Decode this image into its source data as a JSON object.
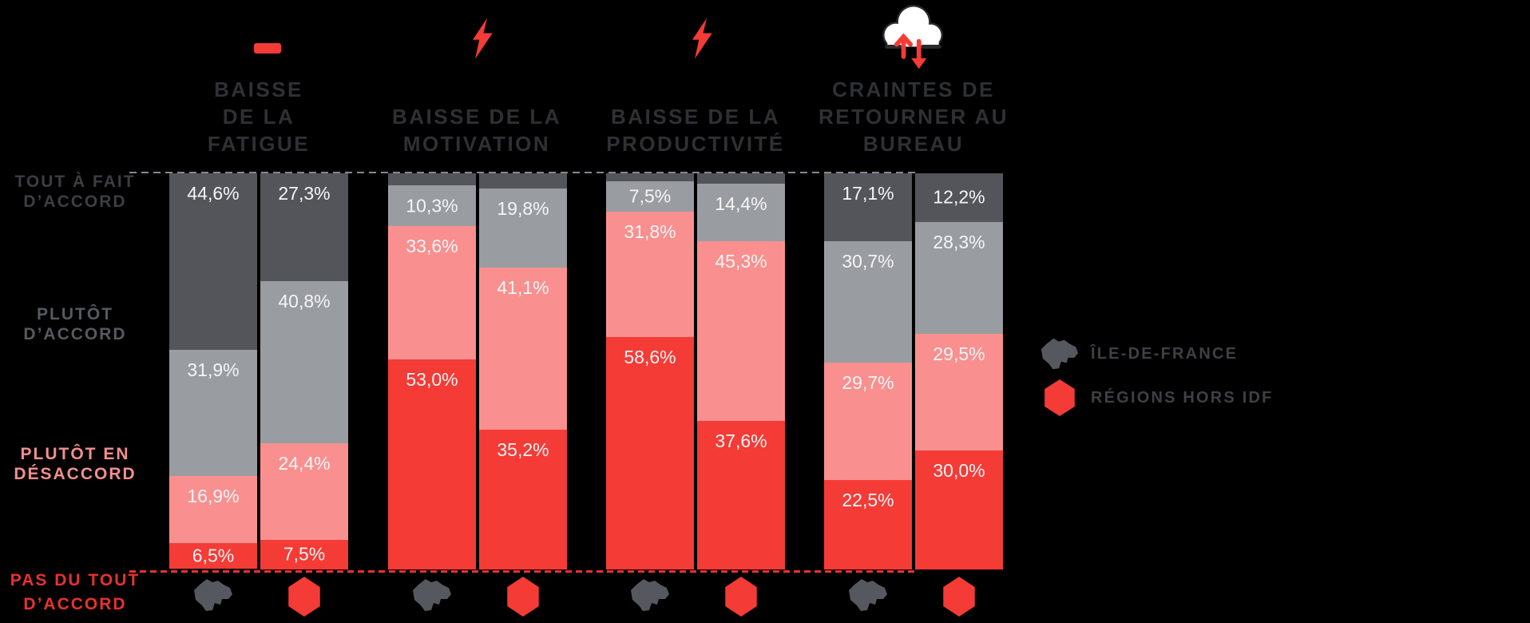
{
  "colors": {
    "background": "#000000",
    "segment_tout_a_fait": "#53555B",
    "segment_plutot_daccord": "#999CA1",
    "segment_plutot_en_desaccord": "#F9908F",
    "segment_pas_du_tout": "#F43B36",
    "accent_red": "#F43B36",
    "top_dashed_line": "#85888D",
    "bottom_dashed_line": "#E8312F",
    "header_text": "#2E3034",
    "value_label_text": "#F5F5F5",
    "legend_text": "#3E4045",
    "idf_icon_gray": "#55585E",
    "cloud_fill": "#FFFFFF",
    "cloud_stroke": "#2B2B2E"
  },
  "header_groups": [
    {
      "icon": "minus-icon",
      "lines": [
        "BAISSE",
        "DE LA",
        "FATIGUE"
      ]
    },
    {
      "icon": "lightning-icon",
      "lines": [
        "BAISSE DE LA",
        "MOTIVATION"
      ]
    },
    {
      "icon": "lightning-icon",
      "lines": [
        "BAISSE DE LA",
        "PRODUCTIVITÉ"
      ]
    },
    {
      "icon": "cloud-sync-icon",
      "lines": [
        "CRAINTES DE",
        "RETOURNER AU",
        "BUREAU"
      ]
    }
  ],
  "y_axis": {
    "labels": [
      {
        "lines": [
          "TOUT À FAIT",
          "D’ACCORD"
        ]
      },
      {
        "lines": [
          "PLUTÔT",
          "D’ACCORD"
        ]
      },
      {
        "lines": [
          "PLUTÔT EN",
          "DÉSACCORD"
        ]
      },
      {
        "lines": [
          "PAS DU TOUT",
          "D’ACCORD"
        ]
      }
    ]
  },
  "legend": {
    "items": [
      {
        "icon": "ile-de-france-map-icon",
        "label": "ÎLE-DE-FRANCE"
      },
      {
        "icon": "hexagon-france-icon",
        "label": "RÉGIONS HORS IDF"
      }
    ]
  },
  "chart_data": {
    "type": "bar",
    "stacked": true,
    "unit": "%",
    "decimal_separator": ",",
    "ylim": [
      0,
      100
    ],
    "grid": false,
    "legend_position": "right",
    "categories": [
      "BAISSE DE LA FATIGUE",
      "BAISSE DE LA MOTIVATION",
      "BAISSE DE LA PRODUCTIVITÉ",
      "CRAINTES DE RETOURNER AU BUREAU"
    ],
    "series_labels": [
      "ÎLE-DE-FRANCE",
      "RÉGIONS HORS IDF"
    ],
    "segment_levels": [
      "TOUT À FAIT D’ACCORD",
      "PLUTÔT D’ACCORD",
      "PLUTÔT EN DÉSACCORD",
      "PAS DU TOUT D’ACCORD"
    ],
    "groups": [
      {
        "category": "BAISSE DE LA FATIGUE",
        "bars": [
          {
            "series": "ÎLE-DE-FRANCE",
            "segments": [
              {
                "level": "TOUT À FAIT D’ACCORD",
                "value": 44.6,
                "label": "44,6%"
              },
              {
                "level": "PLUTÔT D’ACCORD",
                "value": 31.9,
                "label": "31,9%"
              },
              {
                "level": "PLUTÔT EN DÉSACCORD",
                "value": 16.9,
                "label": "16,9%"
              },
              {
                "level": "PAS DU TOUT D’ACCORD",
                "value": 6.5,
                "label": "6,5%"
              }
            ]
          },
          {
            "series": "RÉGIONS HORS IDF",
            "segments": [
              {
                "level": "TOUT À FAIT D’ACCORD",
                "value": 27.3,
                "label": "27,3%"
              },
              {
                "level": "PLUTÔT D’ACCORD",
                "value": 40.8,
                "label": "40,8%"
              },
              {
                "level": "PLUTÔT EN DÉSACCORD",
                "value": 24.4,
                "label": "24,4%"
              },
              {
                "level": "PAS DU TOUT D’ACCORD",
                "value": 7.5,
                "label": "7,5%"
              }
            ]
          }
        ]
      },
      {
        "category": "BAISSE DE LA MOTIVATION",
        "bars": [
          {
            "series": "ÎLE-DE-FRANCE",
            "segments": [
              {
                "level": "TOUT À FAIT D’ACCORD",
                "value": 3.1,
                "label": "",
                "estimated": true
              },
              {
                "level": "PLUTÔT D’ACCORD",
                "value": 10.3,
                "label": "10,3%"
              },
              {
                "level": "PLUTÔT EN DÉSACCORD",
                "value": 33.6,
                "label": "33,6%"
              },
              {
                "level": "PAS DU TOUT D’ACCORD",
                "value": 53.0,
                "label": "53,0%"
              }
            ]
          },
          {
            "series": "RÉGIONS HORS IDF",
            "segments": [
              {
                "level": "TOUT À FAIT D’ACCORD",
                "value": 3.9,
                "label": "",
                "estimated": true
              },
              {
                "level": "PLUTÔT D’ACCORD",
                "value": 19.8,
                "label": "19,8%"
              },
              {
                "level": "PLUTÔT EN DÉSACCORD",
                "value": 41.1,
                "label": "41,1%"
              },
              {
                "level": "PAS DU TOUT D’ACCORD",
                "value": 35.2,
                "label": "35,2%"
              }
            ]
          }
        ]
      },
      {
        "category": "BAISSE DE LA PRODUCTIVITÉ",
        "bars": [
          {
            "series": "ÎLE-DE-FRANCE",
            "segments": [
              {
                "level": "TOUT À FAIT D’ACCORD",
                "value": 2.1,
                "label": "",
                "estimated": true
              },
              {
                "level": "PLUTÔT D’ACCORD",
                "value": 7.5,
                "label": "7,5%"
              },
              {
                "level": "PLUTÔT EN DÉSACCORD",
                "value": 31.8,
                "label": "31,8%"
              },
              {
                "level": "PAS DU TOUT D’ACCORD",
                "value": 58.6,
                "label": "58,6%"
              }
            ]
          },
          {
            "series": "RÉGIONS HORS IDF",
            "segments": [
              {
                "level": "TOUT À FAIT D’ACCORD",
                "value": 2.7,
                "label": "",
                "estimated": true
              },
              {
                "level": "PLUTÔT D’ACCORD",
                "value": 14.4,
                "label": "14,4%"
              },
              {
                "level": "PLUTÔT EN DÉSACCORD",
                "value": 45.3,
                "label": "45,3%"
              },
              {
                "level": "PAS DU TOUT D’ACCORD",
                "value": 37.6,
                "label": "37,6%"
              }
            ]
          }
        ]
      },
      {
        "category": "CRAINTES DE RETOURNER AU BUREAU",
        "bars": [
          {
            "series": "ÎLE-DE-FRANCE",
            "segments": [
              {
                "level": "TOUT À FAIT D’ACCORD",
                "value": 17.1,
                "label": "17,1%"
              },
              {
                "level": "PLUTÔT D’ACCORD",
                "value": 30.7,
                "label": "30,7%"
              },
              {
                "level": "PLUTÔT EN DÉSACCORD",
                "value": 29.7,
                "label": "29,7%"
              },
              {
                "level": "PAS DU TOUT D’ACCORD",
                "value": 22.5,
                "label": "22,5%"
              }
            ]
          },
          {
            "series": "RÉGIONS HORS IDF",
            "segments": [
              {
                "level": "TOUT À FAIT D’ACCORD",
                "value": 12.2,
                "label": "12,2%"
              },
              {
                "level": "PLUTÔT D’ACCORD",
                "value": 28.3,
                "label": "28,3%"
              },
              {
                "level": "PLUTÔT EN DÉSACCORD",
                "value": 29.5,
                "label": "29,5%"
              },
              {
                "level": "PAS DU TOUT D’ACCORD",
                "value": 30.0,
                "label": "30,0%"
              }
            ]
          }
        ]
      }
    ]
  }
}
